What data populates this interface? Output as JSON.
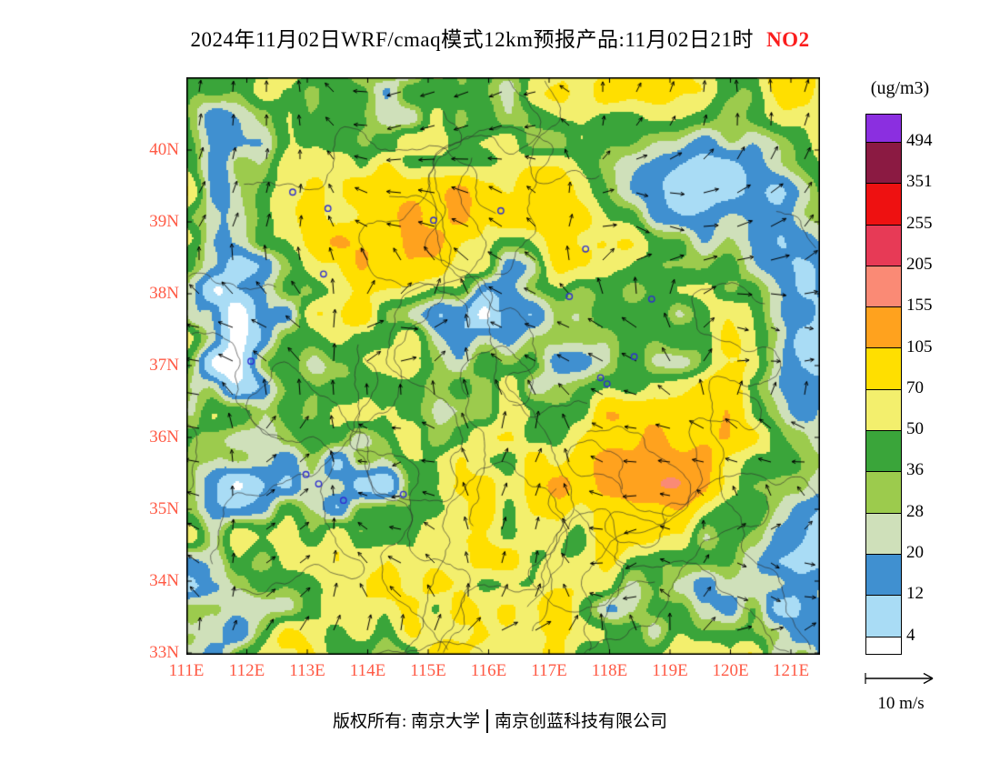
{
  "title": {
    "text": "2024年11月02日WRF/cmaq模式12km预报产品:11月02日21时",
    "pollutant": "NO2"
  },
  "axes": {
    "lat_labels": [
      "40N",
      "39N",
      "38N",
      "37N",
      "36N",
      "35N",
      "34N",
      "33N"
    ],
    "lon_labels": [
      "111E",
      "112E",
      "113E",
      "114E",
      "115E",
      "116E",
      "117E",
      "118E",
      "119E",
      "120E",
      "121E"
    ]
  },
  "colorbar": {
    "unit": "(ug/m3)",
    "levels_top_down": [
      "494",
      "351",
      "255",
      "205",
      "155",
      "105",
      "70",
      "50",
      "36",
      "28",
      "20",
      "12",
      "4"
    ],
    "colors_top_down": [
      "#8b2fe0",
      "#8b1a42",
      "#ee1111",
      "#e73a56",
      "#fa8a75",
      "#ffa21e",
      "#ffdf00",
      "#f3ef6d",
      "#3aa53a",
      "#9ccb4d",
      "#cfe0ba",
      "#4090d0",
      "#a9dcf5",
      "#ffffff"
    ]
  },
  "wind_legend": {
    "speed_label": "10 m/s"
  },
  "footer": {
    "owner": "版权所有: 南京大学",
    "company": "南京创蓝科技有限公司"
  },
  "style": {
    "axis_label_color": "#ff5a45",
    "pollutant_color": "#fb1d1d",
    "marker_color": "#2f2fd0"
  }
}
